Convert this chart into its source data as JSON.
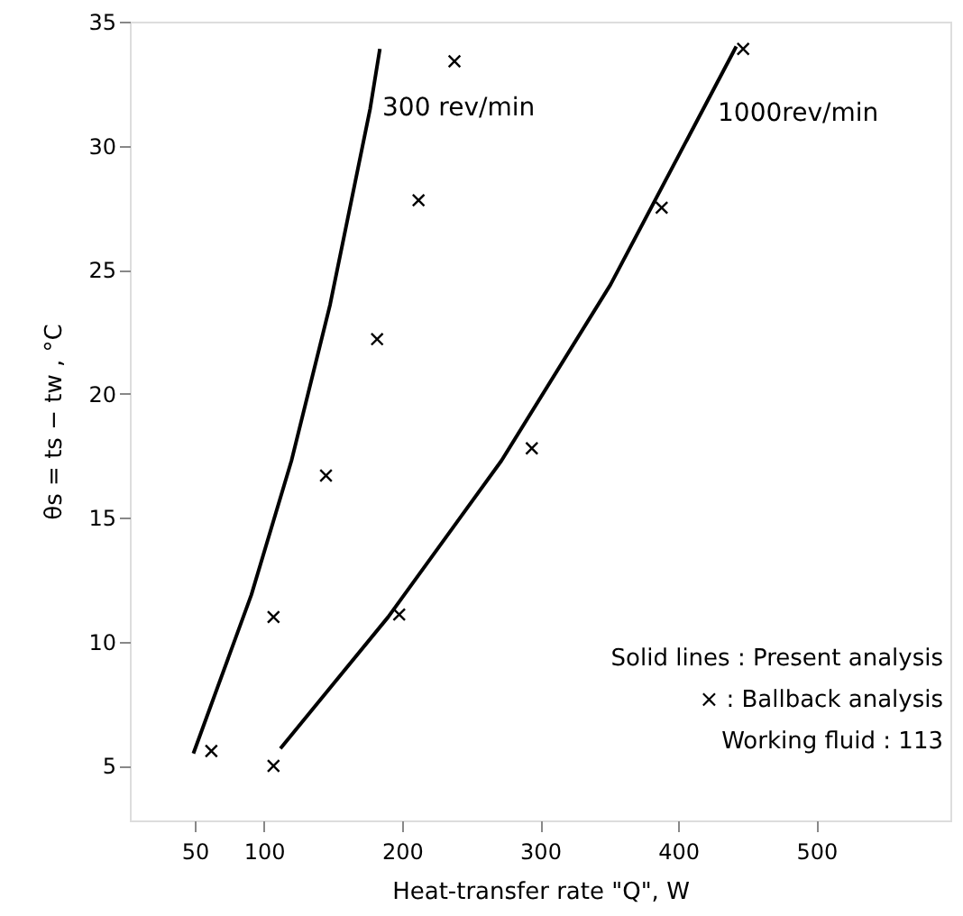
{
  "chart_data": {
    "type": "line",
    "xlabel": "Heat-transfer rate \"Q\",    W",
    "ylabel": "θs = ts − tw ,   °C",
    "xlim": [
      3,
      597
    ],
    "ylim": [
      2.8,
      35
    ],
    "xticks": [
      50,
      100,
      200,
      300,
      400,
      500
    ],
    "yticks": [
      5,
      10,
      15,
      20,
      25,
      30,
      35
    ],
    "grid": false,
    "series": [
      {
        "color": "#000000",
        "line_style": "solid",
        "x": [
          49,
          91,
          120,
          148,
          166,
          177,
          184
        ],
        "values": [
          5.5,
          11.9,
          17.3,
          23.6,
          28.5,
          31.5,
          33.9
        ]
      },
      {
        "color": "#000000",
        "line_style": "solid",
        "x": [
          112,
          190,
          272,
          351,
          442
        ],
        "values": [
          5.7,
          11,
          17.3,
          24.4,
          34
        ]
      },
      {
        "type": "scatter",
        "color": "#000000",
        "marker": "cross",
        "x": [
          62,
          107,
          145,
          182,
          212,
          238,
          107,
          198,
          294,
          388,
          447
        ],
        "values": [
          5.6,
          11,
          16.7,
          22.2,
          27.8,
          33.4,
          5,
          11.1,
          17.8,
          27.5,
          33.9
        ]
      }
    ],
    "annotations": [
      "300 rev/min",
      "1000rev/min",
      "Solid lines : Present analysis",
      "× : Ballback analysis",
      "Working fluid : 113"
    ]
  }
}
